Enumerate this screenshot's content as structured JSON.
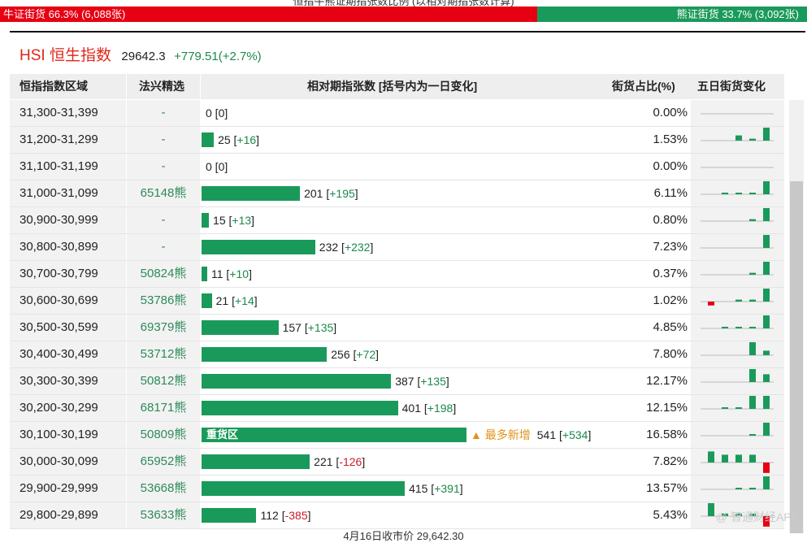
{
  "top_caption": "恒指牛熊证期指张数比例 (以相对期指张数计算)",
  "ratio": {
    "bull_label": "牛证街货 66.3% (6,088张)",
    "bull_pct": 66.3,
    "bear_label": "熊证街货 33.7% (3,092张)",
    "bear_pct": 33.7
  },
  "index": {
    "name": "HSI 恒生指数",
    "value": "29642.3",
    "change": "+779.51(+2.7%)"
  },
  "columns": {
    "range": "恒指指数区域",
    "pick": "法兴精选",
    "contracts": "相对期指张数 [括号内为一日变化]",
    "share": "街货占比(%)",
    "trend": "五日街货变化"
  },
  "colors": {
    "bull": "#e60012",
    "bear": "#1a9a5a",
    "accent": "#e0261b",
    "hot": "#e0921b"
  },
  "bar_scale_max": 541,
  "rows": [
    {
      "range": "31,300-31,399",
      "pick": "-",
      "contracts": "0",
      "delta": "0",
      "delta_sign": "zero",
      "share": "0.00%",
      "zone": "",
      "hot": "",
      "spark": [
        0,
        0,
        0,
        0,
        0
      ]
    },
    {
      "range": "31,200-31,299",
      "pick": "-",
      "contracts": "25",
      "delta": "+16",
      "delta_sign": "pos",
      "share": "1.53%",
      "zone": "",
      "hot": "",
      "spark": [
        0,
        0,
        0.4,
        0.15,
        1
      ]
    },
    {
      "range": "31,100-31,199",
      "pick": "-",
      "contracts": "0",
      "delta": "0",
      "delta_sign": "zero",
      "share": "0.00%",
      "zone": "",
      "hot": "",
      "spark": [
        0,
        0,
        0,
        0,
        0
      ]
    },
    {
      "range": "31,000-31,099",
      "pick": "65148熊",
      "contracts": "201",
      "delta": "+195",
      "delta_sign": "pos",
      "share": "6.11%",
      "zone": "",
      "hot": "",
      "spark": [
        0,
        0.05,
        0.05,
        0.05,
        1
      ]
    },
    {
      "range": "30,900-30,999",
      "pick": "-",
      "contracts": "15",
      "delta": "+13",
      "delta_sign": "pos",
      "share": "0.80%",
      "zone": "",
      "hot": "",
      "spark": [
        0,
        0,
        0,
        0.15,
        1
      ]
    },
    {
      "range": "30,800-30,899",
      "pick": "-",
      "contracts": "232",
      "delta": "+232",
      "delta_sign": "pos",
      "share": "7.23%",
      "zone": "",
      "hot": "",
      "spark": [
        0,
        0,
        0,
        0,
        1
      ]
    },
    {
      "range": "30,700-30,799",
      "pick": "50824熊",
      "contracts": "11",
      "delta": "+10",
      "delta_sign": "pos",
      "share": "0.37%",
      "zone": "",
      "hot": "",
      "spark": [
        0,
        0,
        0,
        0.15,
        1
      ]
    },
    {
      "range": "30,600-30,699",
      "pick": "53786熊",
      "contracts": "21",
      "delta": "+14",
      "delta_sign": "pos",
      "share": "1.02%",
      "zone": "",
      "hot": "",
      "spark": [
        -0.3,
        0,
        0.15,
        0.15,
        1
      ]
    },
    {
      "range": "30,500-30,599",
      "pick": "69379熊",
      "contracts": "157",
      "delta": "+135",
      "delta_sign": "pos",
      "share": "4.85%",
      "zone": "",
      "hot": "",
      "spark": [
        0,
        0.05,
        0.05,
        0.1,
        1
      ]
    },
    {
      "range": "30,400-30,499",
      "pick": "53712熊",
      "contracts": "256",
      "delta": "+72",
      "delta_sign": "pos",
      "share": "7.80%",
      "zone": "",
      "hot": "",
      "spark": [
        0,
        0,
        0,
        1,
        0.35
      ]
    },
    {
      "range": "30,300-30,399",
      "pick": "50812熊",
      "contracts": "387",
      "delta": "+135",
      "delta_sign": "pos",
      "share": "12.17%",
      "zone": "",
      "hot": "",
      "spark": [
        0,
        0,
        0,
        1,
        0.6
      ]
    },
    {
      "range": "30,200-30,299",
      "pick": "68171熊",
      "contracts": "401",
      "delta": "+198",
      "delta_sign": "pos",
      "share": "12.15%",
      "zone": "",
      "hot": "",
      "spark": [
        0,
        0.05,
        0.05,
        1,
        1
      ]
    },
    {
      "range": "30,100-30,199",
      "pick": "50809熊",
      "contracts": "541",
      "delta": "+534",
      "delta_sign": "pos",
      "share": "16.58%",
      "zone": "重货区",
      "hot": "▲ 最多新增",
      "spark": [
        0,
        0,
        0,
        0.05,
        1
      ]
    },
    {
      "range": "30,000-30,099",
      "pick": "65952熊",
      "contracts": "221",
      "delta": "-126",
      "delta_sign": "neg",
      "share": "7.82%",
      "zone": "",
      "hot": "",
      "spark": [
        0.85,
        0.6,
        0.6,
        0.6,
        -0.8
      ]
    },
    {
      "range": "29,900-29,999",
      "pick": "53668熊",
      "contracts": "415",
      "delta": "+391",
      "delta_sign": "pos",
      "share": "13.57%",
      "zone": "",
      "hot": "",
      "spark": [
        0,
        0,
        0.05,
        0.05,
        1
      ]
    },
    {
      "range": "29,800-29,899",
      "pick": "53633熊",
      "contracts": "112",
      "delta": "-385",
      "delta_sign": "neg",
      "share": "5.43%",
      "zone": "",
      "hot": "",
      "spark": [
        1,
        0.2,
        0.2,
        0.2,
        -0.8
      ]
    }
  ],
  "watermark": "智通财经APP",
  "bottom_caption": "4月16日收市价 29,642.30"
}
